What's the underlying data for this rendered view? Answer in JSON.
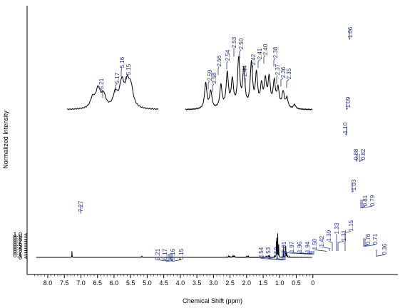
{
  "chart_data": {
    "type": "line",
    "title": "",
    "xlabel": "Chemical Shift (ppm)",
    "ylabel": "Normalized Intensity",
    "x_reversed": true,
    "xlim": [
      8.5,
      0.0
    ],
    "ylim": [
      -0.08,
      1.1
    ],
    "x_ticks": [
      "8.0",
      "7.5",
      "7.0",
      "6.5",
      "6.0",
      "5.5",
      "5.0",
      "4.5",
      "4.0",
      "3.5",
      "3.0",
      "2.5",
      "2.0",
      "1.5",
      "1.0",
      "0.5",
      "0"
    ],
    "y_ticks": [
      "0",
      "0.1",
      "0.2",
      "0.3",
      "0.4",
      "0.5",
      "0.6",
      "0.7",
      "0.8",
      "0.9",
      "1.0"
    ],
    "grid": false,
    "series": [
      {
        "peaks": [
          {
            "x": 7.27,
            "y": 0.27
          },
          {
            "x": 5.21,
            "y": 0.015
          },
          {
            "x": 5.17,
            "y": 0.03
          },
          {
            "x": 5.16,
            "y": 0.035
          },
          {
            "x": 5.15,
            "y": 0.025
          },
          {
            "x": 2.59,
            "y": 0.04
          },
          {
            "x": 2.54,
            "y": 0.05
          },
          {
            "x": 2.53,
            "y": 0.06
          },
          {
            "x": 2.5,
            "y": 0.06
          },
          {
            "x": 2.44,
            "y": 0.05
          },
          {
            "x": 2.42,
            "y": 0.05
          },
          {
            "x": 2.41,
            "y": 0.05
          },
          {
            "x": 2.4,
            "y": 0.04
          },
          {
            "x": 2.38,
            "y": 0.04
          },
          {
            "x": 2.37,
            "y": 0.04
          },
          {
            "x": 2.36,
            "y": 0.03
          },
          {
            "x": 2.35,
            "y": 0.03
          },
          {
            "x": 2.01,
            "y": 0.04
          },
          {
            "x": 1.97,
            "y": 0.05
          },
          {
            "x": 1.96,
            "y": 0.05
          },
          {
            "x": 1.94,
            "y": 0.04
          },
          {
            "x": 1.5,
            "y": 0.05
          },
          {
            "x": 1.42,
            "y": 0.06
          },
          {
            "x": 1.39,
            "y": 0.07
          },
          {
            "x": 1.33,
            "y": 0.08
          },
          {
            "x": 1.31,
            "y": 0.07
          },
          {
            "x": 1.15,
            "y": 0.1
          },
          {
            "x": 1.1,
            "y": 0.6
          },
          {
            "x": 1.09,
            "y": 0.75
          },
          {
            "x": 1.06,
            "y": 1.05
          },
          {
            "x": 1.03,
            "y": 0.55
          },
          {
            "x": 0.88,
            "y": 0.5
          },
          {
            "x": 0.82,
            "y": 0.48
          },
          {
            "x": 0.81,
            "y": 0.2
          },
          {
            "x": 0.79,
            "y": 0.2
          },
          {
            "x": 0.76,
            "y": 0.05
          },
          {
            "x": 0.71,
            "y": 0.04
          },
          {
            "x": 0.36,
            "y": 0.01
          }
        ]
      }
    ],
    "annotations": [
      "7.27",
      "5.21",
      "5.17",
      "5.16",
      "5.15",
      "2.54",
      "2.53",
      "2.50",
      "2.01",
      "1.97",
      "1.96",
      "1.94",
      "1.50",
      "1.42",
      "1.39",
      "1.33",
      "1.31",
      "1.15",
      "1.10",
      "1.09",
      "1.06",
      "1.03",
      "0.88",
      "0.82",
      "0.81",
      "0.79",
      "0.76",
      "0.71",
      "0.36"
    ],
    "inset_annotations": [
      "5.21",
      "5.17",
      "5.16",
      "5.15",
      "2.59",
      "2.58",
      "2.56",
      "2.54",
      "2.53",
      "2.50",
      "2.44",
      "2.42",
      "2.41",
      "2.40",
      "2.38",
      "2.37",
      "2.36",
      "2.35"
    ]
  }
}
